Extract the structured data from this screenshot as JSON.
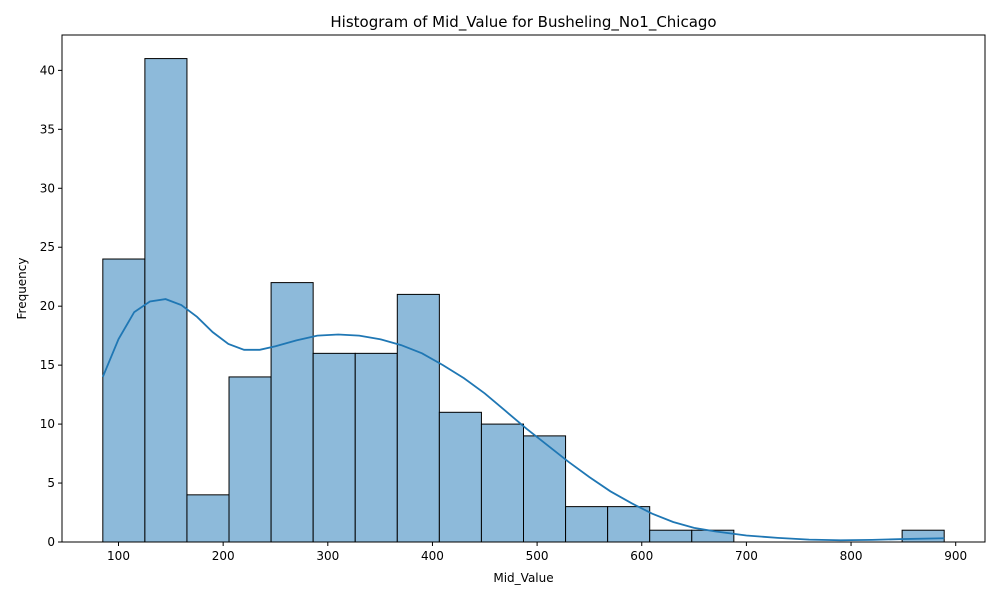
{
  "chart_data": {
    "type": "bar",
    "title": "Histogram of Mid_Value for Busheling_No1_Chicago",
    "xlabel": "Mid_Value",
    "ylabel": "Frequency",
    "xlim": [
      46,
      928
    ],
    "ylim": [
      0,
      43
    ],
    "xticks": [
      100,
      200,
      300,
      400,
      500,
      600,
      700,
      800,
      900
    ],
    "yticks": [
      0,
      5,
      10,
      15,
      20,
      25,
      30,
      35,
      40
    ],
    "bins": [
      {
        "start": 85,
        "end": 125.2,
        "count": 24
      },
      {
        "start": 125.2,
        "end": 165.4,
        "count": 41
      },
      {
        "start": 165.4,
        "end": 205.6,
        "count": 4
      },
      {
        "start": 205.6,
        "end": 245.8,
        "count": 14
      },
      {
        "start": 245.8,
        "end": 286,
        "count": 22
      },
      {
        "start": 286,
        "end": 326.2,
        "count": 16
      },
      {
        "start": 326.2,
        "end": 366.4,
        "count": 16
      },
      {
        "start": 366.4,
        "end": 406.6,
        "count": 21
      },
      {
        "start": 406.6,
        "end": 446.8,
        "count": 11
      },
      {
        "start": 446.8,
        "end": 487,
        "count": 10
      },
      {
        "start": 487,
        "end": 527.2,
        "count": 9
      },
      {
        "start": 527.2,
        "end": 567.4,
        "count": 3
      },
      {
        "start": 567.4,
        "end": 607.6,
        "count": 3
      },
      {
        "start": 607.6,
        "end": 647.8,
        "count": 1
      },
      {
        "start": 647.8,
        "end": 688,
        "count": 1
      },
      {
        "start": 848.8,
        "end": 889,
        "count": 1
      }
    ],
    "kde": {
      "x": [
        85,
        100,
        115,
        130,
        145,
        160,
        175,
        190,
        205,
        220,
        235,
        250,
        270,
        290,
        310,
        330,
        350,
        370,
        390,
        410,
        430,
        450,
        470,
        490,
        510,
        530,
        550,
        570,
        590,
        610,
        630,
        650,
        670,
        700,
        730,
        760,
        790,
        820,
        850,
        889
      ],
      "y": [
        14,
        17.2,
        19.5,
        20.4,
        20.6,
        20.1,
        19.1,
        17.8,
        16.8,
        16.3,
        16.3,
        16.6,
        17.1,
        17.5,
        17.6,
        17.5,
        17.2,
        16.7,
        16.0,
        15.0,
        13.9,
        12.6,
        11.1,
        9.6,
        8.2,
        6.8,
        5.5,
        4.3,
        3.3,
        2.4,
        1.7,
        1.2,
        0.9,
        0.55,
        0.35,
        0.2,
        0.15,
        0.18,
        0.25,
        0.32
      ]
    },
    "grid": false,
    "legend": "none",
    "colors": {
      "bar_fill": "#8dbada",
      "bar_edge": "#000000",
      "kde_line": "#1f77b4"
    }
  }
}
